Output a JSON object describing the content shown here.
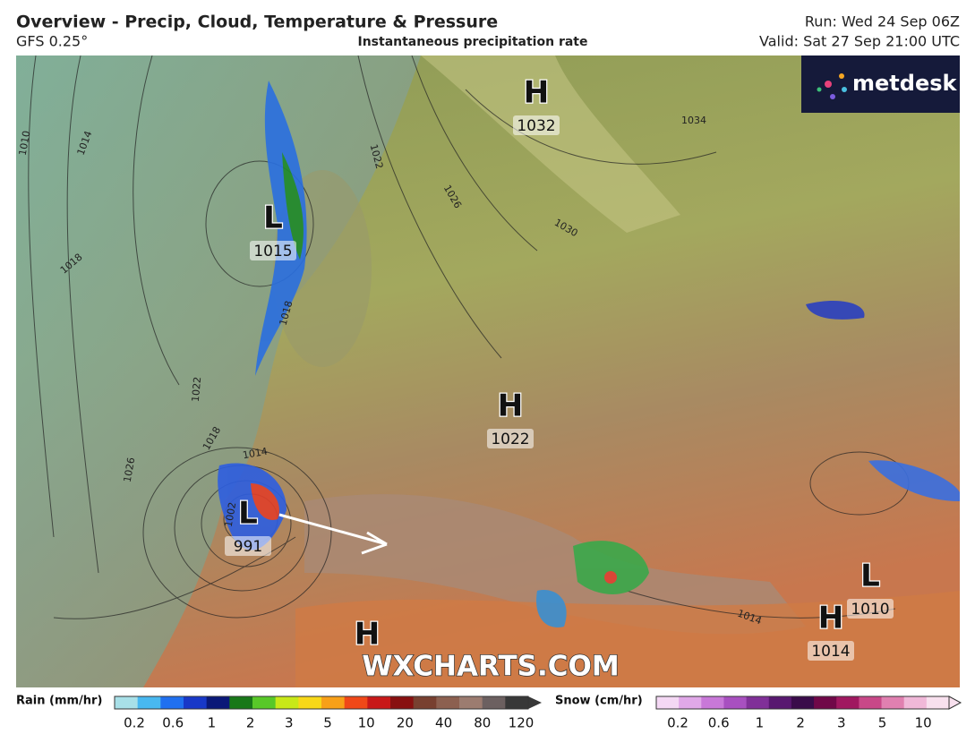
{
  "header": {
    "title": "Overview - Precip, Cloud, Temperature & Pressure",
    "model": "GFS 0.25°",
    "subtitle": "Instantaneous precipitation rate",
    "run": "Run: Wed 24 Sep 06Z",
    "valid": "Valid: Sat 27 Sep 21:00 UTC"
  },
  "logo": "metdesk",
  "watermark": "WXCHARTS.COM",
  "pressure_centers": [
    {
      "symbol": "H",
      "value": "1032"
    },
    {
      "symbol": "L",
      "value": "1015"
    },
    {
      "symbol": "H",
      "value": "1022"
    },
    {
      "symbol": "L",
      "value": "991"
    },
    {
      "symbol": "H"
    },
    {
      "symbol": "L",
      "value": "1010"
    },
    {
      "symbol": "H",
      "value": "1014"
    }
  ],
  "isobar_labels": [
    "1010",
    "1014",
    "1018",
    "1022",
    "1026",
    "1030",
    "1034",
    "1018",
    "1022",
    "1018",
    "1014",
    "1026",
    "1002",
    "1014"
  ],
  "legend": {
    "rain": {
      "label": "Rain (mm/hr)",
      "ticks": [
        "0.2",
        "0.6",
        "1",
        "2",
        "3",
        "5",
        "10",
        "20",
        "40",
        "80",
        "120"
      ]
    },
    "snow": {
      "label": "Snow (cm/hr)",
      "ticks": [
        "0.2",
        "0.6",
        "1",
        "2",
        "3",
        "5",
        "10"
      ]
    }
  }
}
